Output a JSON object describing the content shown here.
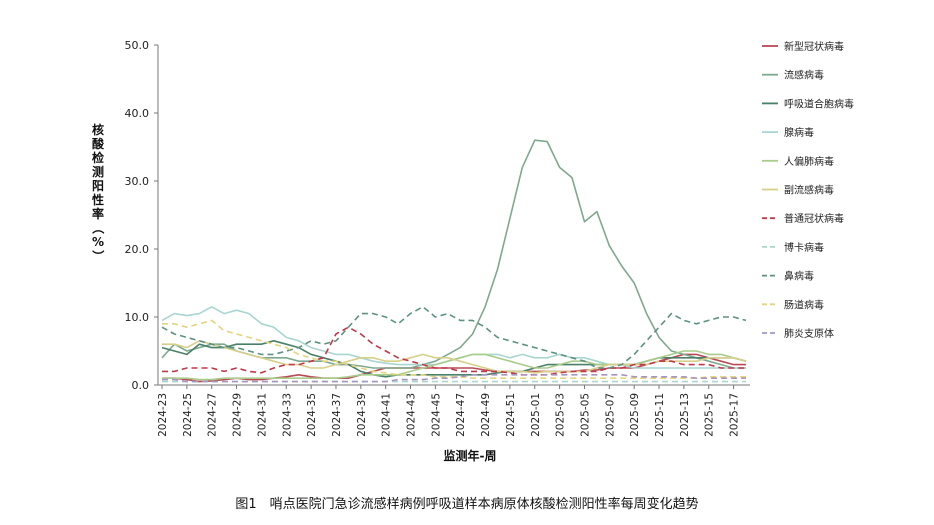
{
  "caption": "图1　哨点医院门急诊流感样病例呼吸道样本病原体核酸检测阳性率每周变化趋势",
  "chart_data": {
    "type": "line",
    "title": "",
    "xlabel": "监测年-周",
    "ylabel": "核酸检测阳性率（%）",
    "ylim": [
      0,
      50
    ],
    "yticks": [
      "0.0",
      "10.0",
      "20.0",
      "30.0",
      "40.0",
      "50.0"
    ],
    "ytick_values": [
      0,
      10,
      20,
      30,
      40,
      50
    ],
    "grid": false,
    "legend_position": "right",
    "x": [
      "2024-23",
      "2024-24",
      "2024-25",
      "2024-26",
      "2024-27",
      "2024-28",
      "2024-29",
      "2024-30",
      "2024-31",
      "2024-32",
      "2024-33",
      "2024-34",
      "2024-35",
      "2024-36",
      "2024-37",
      "2024-38",
      "2024-39",
      "2024-40",
      "2024-41",
      "2024-42",
      "2024-43",
      "2024-44",
      "2024-45",
      "2024-46",
      "2024-47",
      "2024-48",
      "2024-49",
      "2024-50",
      "2024-51",
      "2024-52",
      "2025-01",
      "2025-02",
      "2025-03",
      "2025-04",
      "2025-05",
      "2025-06",
      "2025-07",
      "2025-08",
      "2025-09",
      "2025-10",
      "2025-11",
      "2025-12",
      "2025-13",
      "2025-14",
      "2025-15",
      "2025-16",
      "2025-17",
      "2025-18"
    ],
    "xtick_labels": [
      "2024-23",
      "2024-25",
      "2024-27",
      "2024-29",
      "2024-31",
      "2024-33",
      "2024-35",
      "2024-37",
      "2024-39",
      "2024-41",
      "2024-43",
      "2024-45",
      "2024-47",
      "2024-49",
      "2024-51",
      "2025-01",
      "2025-03",
      "2025-05",
      "2025-07",
      "2025-09",
      "2025-11",
      "2025-13",
      "2025-15",
      "2025-17"
    ],
    "series": [
      {
        "name": "新型冠状病毒",
        "color": "#b94a55",
        "dash": "solid",
        "values": [
          1.0,
          1.0,
          0.8,
          0.5,
          0.6,
          0.8,
          1.0,
          0.8,
          0.8,
          1.0,
          1.2,
          1.5,
          1.2,
          1.0,
          1.0,
          1.0,
          1.5,
          2.0,
          2.5,
          2.5,
          2.5,
          2.5,
          2.5,
          2.5,
          2.5,
          2.5,
          2.2,
          2.0,
          2.0,
          2.0,
          2.0,
          2.0,
          2.0,
          2.0,
          2.2,
          2.2,
          2.5,
          2.5,
          2.5,
          3.0,
          3.5,
          4.0,
          4.5,
          4.5,
          4.0,
          3.5,
          3.0,
          3.0
        ]
      },
      {
        "name": "流感病毒",
        "color": "#7fa98f",
        "dash": "solid",
        "values": [
          4.0,
          6.0,
          5.0,
          5.5,
          6.0,
          6.0,
          5.0,
          4.5,
          4.0,
          4.0,
          4.0,
          3.5,
          3.5,
          3.5,
          3.0,
          3.0,
          2.8,
          2.5,
          2.5,
          2.5,
          2.5,
          3.0,
          3.5,
          4.5,
          5.5,
          7.5,
          11.5,
          17.0,
          24.5,
          32.0,
          36.0,
          35.8,
          32.0,
          30.5,
          24.0,
          25.5,
          20.5,
          17.5,
          15.0,
          10.5,
          7.0,
          5.0,
          4.5,
          4.0,
          3.5,
          3.0,
          2.5,
          2.5
        ]
      },
      {
        "name": "呼吸道合胞病毒",
        "color": "#4a8068",
        "dash": "solid",
        "values": [
          5.5,
          5.0,
          4.5,
          6.0,
          5.5,
          5.5,
          6.0,
          6.0,
          6.0,
          6.5,
          6.0,
          5.5,
          4.5,
          4.0,
          3.5,
          3.0,
          2.0,
          1.5,
          1.2,
          1.5,
          1.5,
          1.5,
          1.5,
          1.5,
          1.5,
          1.5,
          1.5,
          1.8,
          2.0,
          2.0,
          2.5,
          3.0,
          3.0,
          3.0,
          3.0,
          3.0,
          3.0,
          3.0,
          3.0,
          3.5,
          4.0,
          4.0,
          4.0,
          4.0,
          4.0,
          4.0,
          4.0,
          3.5
        ]
      },
      {
        "name": "腺病毒",
        "color": "#a9d6d1",
        "dash": "solid",
        "values": [
          9.5,
          10.5,
          10.2,
          10.5,
          11.5,
          10.5,
          11.0,
          10.5,
          9.0,
          8.5,
          7.0,
          6.5,
          5.5,
          5.0,
          4.5,
          4.5,
          4.0,
          3.5,
          3.2,
          3.0,
          3.0,
          3.0,
          3.0,
          3.5,
          4.0,
          4.5,
          4.5,
          4.5,
          4.0,
          4.5,
          4.0,
          4.0,
          4.5,
          4.0,
          4.0,
          3.5,
          3.0,
          3.0,
          2.5,
          2.5,
          2.5,
          2.5,
          2.5,
          2.5,
          2.5,
          2.5,
          2.5,
          2.5
        ]
      },
      {
        "name": "人偏肺病毒",
        "color": "#a9cc8b",
        "dash": "solid",
        "values": [
          1.0,
          1.0,
          1.0,
          0.8,
          0.8,
          1.0,
          1.0,
          1.0,
          1.0,
          1.0,
          1.0,
          1.0,
          1.0,
          1.0,
          1.0,
          1.2,
          1.5,
          1.5,
          1.5,
          1.5,
          2.0,
          2.5,
          3.0,
          3.5,
          4.0,
          4.5,
          4.5,
          4.0,
          3.5,
          3.0,
          2.5,
          2.5,
          3.0,
          3.5,
          3.5,
          3.0,
          3.0,
          3.0,
          3.0,
          3.5,
          4.0,
          4.5,
          5.0,
          5.0,
          4.5,
          4.5,
          4.0,
          3.5
        ]
      },
      {
        "name": "副流感病毒",
        "color": "#d7d08a",
        "dash": "solid",
        "values": [
          6.0,
          6.0,
          5.5,
          6.5,
          6.0,
          5.5,
          5.0,
          4.5,
          4.0,
          3.5,
          3.0,
          3.0,
          2.5,
          2.5,
          3.0,
          3.5,
          4.0,
          4.0,
          3.5,
          3.5,
          4.0,
          4.5,
          4.0,
          4.0,
          3.5,
          3.0,
          2.5,
          2.0,
          2.0,
          2.0,
          1.8,
          2.0,
          2.0,
          2.0,
          2.0,
          2.5,
          3.0,
          3.0,
          3.0,
          3.0,
          3.5,
          3.5,
          3.5,
          3.5,
          4.0,
          4.0,
          4.0,
          3.5
        ]
      },
      {
        "name": "普通冠状病毒",
        "color": "#c0394a",
        "dash": "dash",
        "values": [
          2.0,
          2.0,
          2.5,
          2.5,
          2.5,
          2.0,
          2.5,
          2.0,
          1.8,
          2.5,
          3.0,
          3.0,
          3.5,
          4.0,
          7.5,
          8.5,
          7.5,
          6.0,
          5.0,
          4.0,
          3.5,
          3.0,
          2.5,
          2.5,
          2.0,
          2.0,
          2.0,
          2.0,
          1.8,
          1.5,
          1.5,
          1.5,
          1.8,
          2.0,
          2.0,
          2.0,
          2.5,
          2.5,
          3.0,
          3.0,
          3.5,
          3.5,
          3.0,
          3.0,
          3.0,
          2.5,
          2.5,
          2.5
        ]
      },
      {
        "name": "博卡病毒",
        "color": "#aad6cc",
        "dash": "dash",
        "values": [
          0.5,
          0.5,
          0.5,
          0.5,
          0.5,
          0.5,
          0.5,
          0.5,
          0.5,
          0.5,
          0.5,
          0.5,
          0.5,
          0.5,
          0.5,
          0.5,
          0.5,
          0.5,
          0.5,
          0.5,
          0.5,
          0.5,
          0.5,
          0.5,
          0.5,
          0.5,
          0.5,
          0.5,
          0.5,
          0.5,
          0.5,
          0.5,
          0.5,
          0.5,
          0.5,
          0.5,
          0.5,
          0.5,
          0.5,
          0.5,
          0.5,
          0.5,
          0.5,
          0.5,
          0.5,
          0.5,
          0.5,
          0.5
        ]
      },
      {
        "name": "鼻病毒",
        "color": "#5e9182",
        "dash": "dash",
        "values": [
          8.5,
          7.5,
          7.0,
          6.5,
          6.0,
          5.5,
          5.5,
          5.0,
          4.5,
          4.5,
          5.0,
          5.5,
          6.5,
          6.0,
          6.5,
          8.5,
          10.5,
          10.5,
          10.0,
          9.0,
          10.5,
          11.5,
          10.0,
          10.5,
          9.5,
          9.5,
          8.5,
          7.0,
          6.5,
          6.0,
          5.5,
          5.0,
          4.5,
          4.0,
          3.5,
          2.5,
          2.5,
          3.0,
          4.5,
          6.5,
          8.5,
          10.5,
          9.5,
          9.0,
          9.5,
          10.0,
          10.0,
          9.5
        ]
      },
      {
        "name": "肠道病毒",
        "color": "#e2d57d",
        "dash": "dash",
        "values": [
          9.0,
          9.0,
          8.5,
          9.0,
          9.5,
          8.0,
          7.5,
          7.0,
          6.5,
          6.0,
          5.5,
          4.5,
          4.0,
          3.5,
          3.5,
          3.0,
          2.5,
          2.0,
          1.8,
          1.5,
          1.5,
          1.5,
          1.2,
          1.2,
          1.2,
          1.0,
          1.0,
          1.0,
          1.0,
          1.0,
          1.0,
          1.0,
          1.0,
          1.0,
          1.0,
          1.0,
          1.0,
          1.0,
          1.0,
          1.0,
          1.0,
          1.0,
          1.0,
          1.0,
          1.2,
          1.2,
          1.2,
          1.2
        ]
      },
      {
        "name": "肺炎支原体",
        "color": "#a695c2",
        "dash": "dash",
        "values": [
          0.8,
          0.8,
          0.5,
          0.5,
          0.5,
          0.5,
          0.5,
          0.5,
          0.5,
          0.5,
          0.5,
          0.5,
          0.5,
          0.5,
          0.5,
          0.5,
          0.5,
          0.5,
          0.5,
          0.8,
          0.8,
          0.8,
          1.0,
          1.0,
          1.2,
          1.5,
          1.5,
          1.5,
          1.5,
          1.5,
          1.5,
          1.5,
          1.5,
          1.5,
          1.5,
          1.5,
          1.5,
          1.5,
          1.2,
          1.2,
          1.2,
          1.2,
          1.2,
          1.0,
          1.0,
          1.0,
          1.0,
          1.0
        ]
      }
    ]
  }
}
